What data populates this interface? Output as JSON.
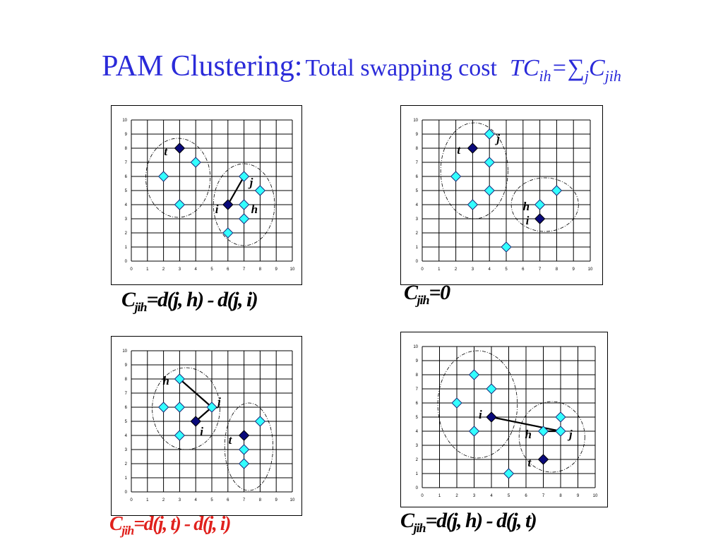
{
  "title": {
    "main": "PAM Clustering:",
    "sub": "Total swapping cost",
    "tc": "TC",
    "tc_sub": "ih",
    "eq": "=",
    "sum": "∑",
    "sum_sub": "j",
    "c": "C",
    "c_sub": "jih"
  },
  "axis_ticks": [
    "0",
    "1",
    "2",
    "3",
    "4",
    "5",
    "6",
    "7",
    "8",
    "9",
    "10"
  ],
  "colors": {
    "light_point": "#33ffff",
    "dark_point": "#0a0a7a",
    "title": "#2b2bd9",
    "highlight_formula": "#e0201c"
  },
  "chart_data": [
    {
      "type": "scatter",
      "xlim": [
        0,
        10
      ],
      "ylim": [
        0,
        10
      ],
      "grid": true,
      "light_points": [
        [
          2,
          6
        ],
        [
          3,
          4
        ],
        [
          4,
          7
        ],
        [
          6,
          2
        ],
        [
          7,
          3
        ],
        [
          7,
          4
        ],
        [
          7,
          6
        ],
        [
          8,
          5
        ]
      ],
      "dark_points": [
        [
          3,
          8
        ],
        [
          6,
          4
        ]
      ],
      "labels": [
        {
          "text": "t",
          "x": 3,
          "y": 8,
          "dx": -22,
          "dy": 10
        },
        {
          "text": "j",
          "x": 7,
          "y": 6,
          "dx": 8,
          "dy": 14
        },
        {
          "text": "i",
          "x": 6,
          "y": 4,
          "dx": -18,
          "dy": 12
        },
        {
          "text": "h",
          "x": 7,
          "y": 4,
          "dx": 10,
          "dy": 12
        }
      ],
      "lines": [
        [
          [
            6,
            4
          ],
          [
            7,
            6
          ]
        ]
      ],
      "thin_lines": [
        [
          [
            7,
            6
          ],
          [
            7,
            4
          ]
        ]
      ],
      "clusters": [
        [
          2.9,
          5.9,
          2.0,
          2.8
        ],
        [
          7.0,
          4.0,
          1.9,
          2.9
        ]
      ],
      "formula": {
        "c": "C",
        "sub": "jih",
        "rest": "=d(j, h) - d(j, i)",
        "red": false
      }
    },
    {
      "type": "scatter",
      "xlim": [
        0,
        10
      ],
      "ylim": [
        0,
        10
      ],
      "grid": true,
      "light_points": [
        [
          2,
          6
        ],
        [
          3,
          4
        ],
        [
          4,
          5
        ],
        [
          4,
          7
        ],
        [
          4,
          9
        ],
        [
          5,
          1
        ],
        [
          7,
          4
        ],
        [
          8,
          5
        ]
      ],
      "dark_points": [
        [
          3,
          8
        ],
        [
          7,
          3
        ]
      ],
      "labels": [
        {
          "text": "t",
          "x": 3,
          "y": 8,
          "dx": -22,
          "dy": 8
        },
        {
          "text": "j",
          "x": 4,
          "y": 9,
          "dx": 10,
          "dy": 12
        },
        {
          "text": "h",
          "x": 7,
          "y": 4,
          "dx": -24,
          "dy": 8
        },
        {
          "text": "i",
          "x": 7,
          "y": 3,
          "dx": -20,
          "dy": 8
        }
      ],
      "lines": [],
      "thin_lines": [],
      "clusters": [
        [
          3.1,
          6.4,
          2.0,
          3.4
        ],
        [
          7.3,
          4.0,
          2.0,
          1.9
        ]
      ],
      "formula": {
        "c": "C",
        "sub": "jih",
        "rest": "=0",
        "red": false
      }
    },
    {
      "type": "scatter",
      "xlim": [
        0,
        10
      ],
      "ylim": [
        0,
        10
      ],
      "grid": true,
      "light_points": [
        [
          2,
          6
        ],
        [
          3,
          4
        ],
        [
          3,
          6
        ],
        [
          3,
          8
        ],
        [
          5,
          6
        ],
        [
          7,
          2
        ],
        [
          7,
          3
        ],
        [
          8,
          5
        ]
      ],
      "dark_points": [
        [
          4,
          5
        ],
        [
          7,
          4
        ]
      ],
      "labels": [
        {
          "text": "h",
          "x": 3,
          "y": 8,
          "dx": -24,
          "dy": 8
        },
        {
          "text": "j",
          "x": 5,
          "y": 6,
          "dx": 8,
          "dy": -2
        },
        {
          "text": "i",
          "x": 4,
          "y": 5,
          "dx": 6,
          "dy": 20
        },
        {
          "text": "t",
          "x": 7,
          "y": 4,
          "dx": -22,
          "dy": 12
        }
      ],
      "lines": [
        [
          [
            3,
            8
          ],
          [
            5,
            6
          ]
        ],
        [
          [
            4,
            5
          ],
          [
            5,
            6
          ]
        ]
      ],
      "thin_lines": [],
      "clusters": [
        [
          3.4,
          5.9,
          2.1,
          2.9
        ],
        [
          7.3,
          3.2,
          1.5,
          3.1
        ]
      ],
      "formula": {
        "c": "C",
        "sub": "jih",
        "rest": "=d(j, t) - d(j, i)",
        "red": true
      }
    },
    {
      "type": "scatter",
      "xlim": [
        0,
        10
      ],
      "ylim": [
        0,
        10
      ],
      "grid": true,
      "light_points": [
        [
          2,
          6
        ],
        [
          3,
          4
        ],
        [
          3,
          8
        ],
        [
          4,
          7
        ],
        [
          5,
          1
        ],
        [
          7,
          4
        ],
        [
          8,
          4
        ],
        [
          8,
          5
        ]
      ],
      "dark_points": [
        [
          4,
          5
        ],
        [
          7,
          2
        ]
      ],
      "labels": [
        {
          "text": "i",
          "x": 4,
          "y": 5,
          "dx": -18,
          "dy": 2
        },
        {
          "text": "h",
          "x": 7,
          "y": 4,
          "dx": -26,
          "dy": 10
        },
        {
          "text": "j",
          "x": 8,
          "y": 4,
          "dx": 12,
          "dy": 10
        },
        {
          "text": "t",
          "x": 7,
          "y": 2,
          "dx": -22,
          "dy": 10
        }
      ],
      "lines": [
        [
          [
            4,
            5
          ],
          [
            8,
            4
          ]
        ],
        [
          [
            7,
            4
          ],
          [
            8,
            4
          ]
        ]
      ],
      "thin_lines": [],
      "clusters": [
        [
          3.2,
          5.9,
          2.3,
          3.8
        ],
        [
          7.5,
          3.6,
          1.9,
          2.5
        ]
      ],
      "formula": {
        "c": "C",
        "sub": "jih",
        "rest": "=d(j, h) - d(j, t)",
        "red": false
      }
    }
  ]
}
